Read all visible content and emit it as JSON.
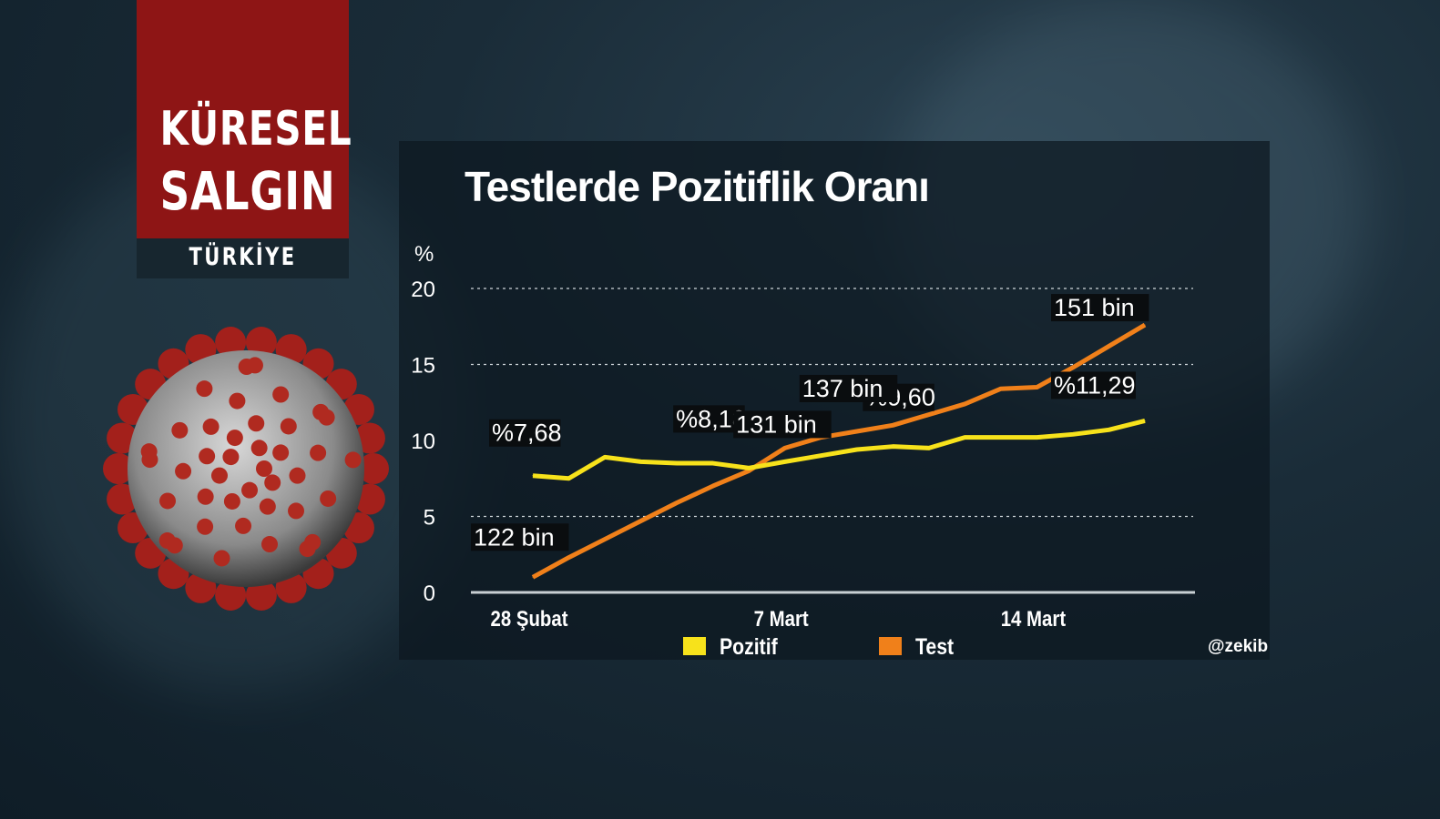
{
  "badge": {
    "line1": "KÜRESEL",
    "line2": "SALGIN",
    "line3": "TÜRKİYE"
  },
  "credit": "@zekib",
  "colors": {
    "pozitif": "#f7e21b",
    "test": "#f0801a",
    "badge_red": "#8e1515"
  },
  "chart_data": {
    "type": "line",
    "title": "Testlerde Pozitiflik Oranı",
    "ylabel": "%",
    "ylim": [
      0,
      20
    ],
    "yticks": [
      "0",
      "5",
      "10",
      "15",
      "20"
    ],
    "xtick_labels": [
      {
        "index": 0,
        "label": "28 Şubat"
      },
      {
        "index": 7,
        "label": "7 Mart"
      },
      {
        "index": 14,
        "label": "14 Mart"
      }
    ],
    "x": [
      "28 Şubat",
      "1 Mart",
      "2 Mart",
      "3 Mart",
      "4 Mart",
      "5 Mart",
      "6 Mart",
      "7 Mart",
      "8 Mart",
      "9 Mart",
      "10 Mart",
      "11 Mart",
      "12 Mart",
      "13 Mart",
      "14 Mart",
      "15 Mart",
      "16 Mart",
      "17 Mart"
    ],
    "grid": true,
    "legend_position": "bottom",
    "series": [
      {
        "name": "Pozitif",
        "color": "#f7e21b",
        "values": [
          7.68,
          7.5,
          8.9,
          8.6,
          8.5,
          8.5,
          8.18,
          8.6,
          9.0,
          9.4,
          9.6,
          9.5,
          10.2,
          10.2,
          10.2,
          10.4,
          10.7,
          11.29
        ],
        "labels": [
          {
            "index": 0,
            "text": "%7,68"
          },
          {
            "index": 6,
            "text": "%8,18"
          },
          {
            "index": 10,
            "text": "%9,60"
          },
          {
            "index": 17,
            "text": "%11,29"
          }
        ]
      },
      {
        "name": "Test",
        "color": "#f0801a",
        "values": [
          1.0,
          2.3,
          3.5,
          4.7,
          5.9,
          7.0,
          8.0,
          9.5,
          10.2,
          10.6,
          11.0,
          11.7,
          12.4,
          13.4,
          13.5,
          14.8,
          16.2,
          17.6
        ],
        "labels": [
          {
            "index": 0,
            "text": "122 bin"
          },
          {
            "index": 6,
            "text": "131 bin"
          },
          {
            "index": 9,
            "text": "137 bin"
          },
          {
            "index": 17,
            "text": "151 bin"
          }
        ]
      }
    ]
  }
}
